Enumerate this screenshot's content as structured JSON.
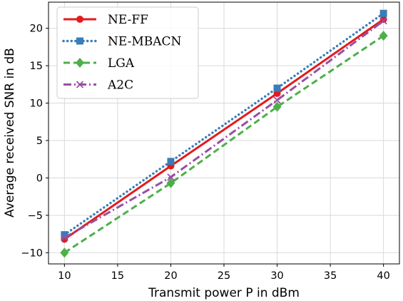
{
  "chart_data": {
    "type": "line",
    "title": "",
    "xlabel": "Transmit power P in dBm",
    "ylabel": "Average received SNR in dB",
    "xlim": [
      8.5,
      41.5
    ],
    "ylim": [
      -11.5,
      23.5
    ],
    "xticks": [
      10,
      15,
      20,
      25,
      30,
      35,
      40
    ],
    "yticks": [
      -10,
      -5,
      0,
      5,
      10,
      15,
      20
    ],
    "xtick_labels": [
      "10",
      "15",
      "20",
      "25",
      "30",
      "35",
      "40"
    ],
    "ytick_labels": [
      "−10",
      "−5",
      "0",
      "5",
      "10",
      "15",
      "20"
    ],
    "grid": true,
    "legend_position": "top-left",
    "x": [
      10,
      20,
      30,
      40
    ],
    "series": [
      {
        "name": "NE-FF",
        "values": [
          -8.2,
          1.6,
          11.3,
          21.2
        ],
        "color": "#e41a1c",
        "dash": "solid",
        "marker": "circle"
      },
      {
        "name": "NE-MBACN",
        "values": [
          -7.6,
          2.2,
          12.0,
          22.0
        ],
        "color": "#377eb8",
        "dash": "dotted",
        "marker": "square"
      },
      {
        "name": "LGA",
        "values": [
          -10.0,
          -0.7,
          9.5,
          19.0
        ],
        "color": "#4daf4a",
        "dash": "dashed",
        "marker": "diamond"
      },
      {
        "name": "A2C",
        "values": [
          -8.0,
          0.1,
          10.4,
          21.0
        ],
        "color": "#984ea3",
        "dash": "dashdot",
        "marker": "x"
      }
    ]
  }
}
